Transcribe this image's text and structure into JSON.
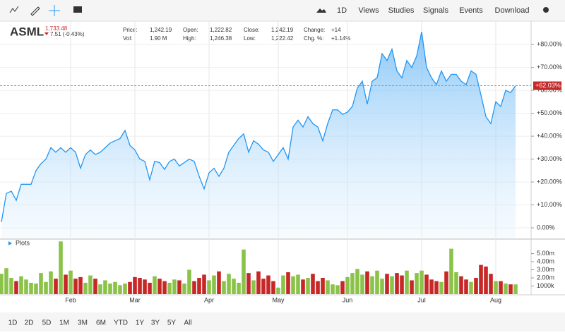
{
  "toolbar": {
    "items": [
      "1D",
      "Views",
      "Studies",
      "Signals",
      "Events",
      "Download"
    ]
  },
  "quote": {
    "symbol": "ASML",
    "last": "1,733.48",
    "change": "7.51 (-0.43%)",
    "fields": [
      [
        "Price:",
        "1,242.19"
      ],
      [
        "Vol:",
        "1.90 M"
      ],
      [
        "Open:",
        "1,222.82"
      ],
      [
        "High:",
        "1,246.38"
      ],
      [
        "Close:",
        "1,242.19"
      ],
      [
        "Low:",
        "1,222.42"
      ],
      [
        "Change:",
        "+14"
      ],
      [
        "Chg. %:",
        "+1.14%"
      ]
    ]
  },
  "range_buttons": [
    "1D",
    "2D",
    "5D",
    "1M",
    "3M",
    "6M",
    "YTD",
    "1Y",
    "3Y",
    "5Y",
    "All"
  ],
  "chart_data": [
    {
      "type": "area",
      "categories": [
        null,
        null,
        null,
        null,
        null,
        null,
        null,
        null,
        null,
        null,
        null,
        null,
        null,
        null,
        "Feb",
        null,
        null,
        null,
        null,
        null,
        null,
        null,
        null,
        null,
        null,
        null,
        null,
        "Mar",
        null,
        null,
        null,
        null,
        null,
        null,
        null,
        null,
        null,
        null,
        null,
        null,
        null,
        null,
        "Apr",
        null,
        null,
        null,
        null,
        null,
        null,
        null,
        null,
        null,
        null,
        null,
        null,
        null,
        "May",
        null,
        null,
        null,
        null,
        null,
        null,
        null,
        null,
        null,
        null,
        null,
        null,
        null,
        "Jun",
        null,
        null,
        null,
        null,
        null,
        null,
        null,
        null,
        null,
        null,
        null,
        null,
        null,
        null,
        "Jul",
        null,
        null,
        null,
        null,
        null,
        null,
        null,
        null,
        null,
        null,
        null,
        null,
        null,
        null,
        "Aug",
        null,
        null,
        null,
        null
      ],
      "series": [
        {
          "color": "#2196f3",
          "values": [
            2.5,
            15,
            16,
            12,
            19,
            19,
            19,
            25,
            28,
            30,
            35,
            33,
            35,
            33,
            35,
            33,
            26,
            32,
            34,
            32,
            33,
            35,
            37,
            38,
            39,
            42.5,
            36,
            34,
            30,
            29,
            21,
            29,
            28.5,
            25.5,
            29,
            30,
            27,
            28.5,
            30,
            29,
            22.5,
            17,
            24,
            26,
            22.5,
            26,
            33,
            36,
            39,
            41,
            33,
            38,
            36.5,
            34,
            33,
            29,
            32,
            35,
            30,
            44,
            47,
            44,
            48.5,
            45.5,
            44,
            38,
            45.5,
            51.5,
            51.5,
            49.5,
            50.5,
            53,
            61,
            64,
            54,
            64,
            65.5,
            76,
            73,
            78,
            68.5,
            65.5,
            73,
            70,
            75,
            85.5,
            70,
            65.5,
            62.5,
            68.5,
            64,
            67,
            67,
            64,
            62.5,
            68.5,
            67,
            58,
            48.5,
            45.5,
            55,
            53,
            60,
            59,
            62.03
          ]
        }
      ],
      "current": {
        "value": 62.03,
        "label": "+62.03%"
      },
      "ylim": [
        -4.6,
        90.2
      ],
      "yticks": [
        {
          "value": 0,
          "label": "0.00%"
        },
        {
          "value": 10,
          "label": "+10.00%"
        },
        {
          "value": 20,
          "label": "+20.00%"
        },
        {
          "value": 30,
          "label": "+30.00%"
        },
        {
          "value": 40,
          "label": "+40.00%"
        },
        {
          "value": 50,
          "label": "+50.00%"
        },
        {
          "value": 60,
          "label": "+60.00%"
        },
        {
          "value": 70,
          "label": "+70.00%"
        },
        {
          "value": 80,
          "label": "+80.00%"
        }
      ],
      "grid": true
    },
    {
      "type": "bar",
      "title": "Plots",
      "up_color": "#8bc34a",
      "down_color": "#c62828",
      "values": [
        2.5,
        3.2,
        2.0,
        1.6,
        2.2,
        1.8,
        1.4,
        1.3,
        2.6,
        1.5,
        2.8,
        1.9,
        6.5,
        2.4,
        2.9,
        1.9,
        2.1,
        1.4,
        2.3,
        1.9,
        1.2,
        1.7,
        1.3,
        1.5,
        1.1,
        1.3,
        1.5,
        2.1,
        2.0,
        1.8,
        1.4,
        2.2,
        1.9,
        1.6,
        1.4,
        1.8,
        1.7,
        1.3,
        3.0,
        1.6,
        2.0,
        2.4,
        1.7,
        2.3,
        2.8,
        1.6,
        2.5,
        1.9,
        1.4,
        5.5,
        2.6,
        1.7,
        2.8,
        1.9,
        2.3,
        1.6,
        0.8,
        2.3,
        2.7,
        2.2,
        2.4,
        1.8,
        2.0,
        2.5,
        1.6,
        2.0,
        1.7,
        1.2,
        1.1,
        1.6,
        2.1,
        2.6,
        3.1,
        2.4,
        2.8,
        2.2,
        2.9,
        1.9,
        2.5,
        2.2,
        2.6,
        2.3,
        2.9,
        1.7,
        2.6,
        2.9,
        2.4,
        1.8,
        1.6,
        1.5,
        2.8,
        5.6,
        2.7,
        2.2,
        1.8,
        1.5,
        2.0,
        3.6,
        3.4,
        2.5,
        1.6,
        1.6,
        1.3,
        1.2,
        1.2
      ],
      "ylim": [
        0,
        6.7
      ],
      "yticks": [
        {
          "value": 1,
          "label": "1000k"
        },
        {
          "value": 2,
          "label": "2.00m"
        },
        {
          "value": 3,
          "label": "3.00m"
        },
        {
          "value": 4,
          "label": "4.00m"
        },
        {
          "value": 5,
          "label": "5.00m"
        }
      ]
    }
  ]
}
